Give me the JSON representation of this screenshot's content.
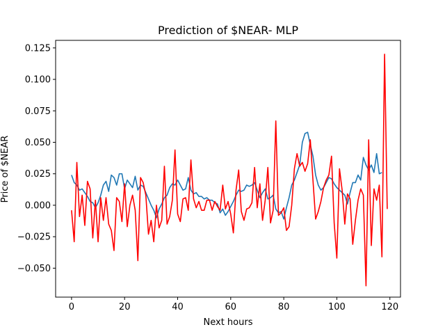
{
  "chart_data": {
    "type": "line",
    "title": "Prediction of $NEAR- MLP",
    "xlabel": "Next hours",
    "ylabel": "Price of $NEAR",
    "xlim": [
      -6,
      124
    ],
    "ylim": [
      -0.073,
      0.131
    ],
    "xticks": [
      0,
      20,
      40,
      60,
      80,
      100,
      120
    ],
    "xtick_labels": [
      "0",
      "20",
      "40",
      "60",
      "80",
      "100",
      "120"
    ],
    "yticks": [
      -0.05,
      -0.025,
      0.0,
      0.025,
      0.05,
      0.075,
      0.1,
      0.125
    ],
    "ytick_labels": [
      "−0.050",
      "−0.025",
      "0.000",
      "0.025",
      "0.050",
      "0.075",
      "0.100",
      "0.125"
    ],
    "grid": false,
    "legend": "none",
    "series": [
      {
        "color": "#1f77b4",
        "values": [
          0.024,
          0.018,
          0.016,
          0.012,
          0.013,
          0.01,
          0.007,
          0.003,
          0.002,
          -0.002,
          0.002,
          0.008,
          0.016,
          0.019,
          0.011,
          0.024,
          0.022,
          0.016,
          0.025,
          0.025,
          0.013,
          0.02,
          0.017,
          0.014,
          0.023,
          0.012,
          0.016,
          0.015,
          0.01,
          0.005,
          0.0,
          -0.004,
          -0.01,
          -0.003,
          0.001,
          0.006,
          0.008,
          0.014,
          0.017,
          0.016,
          0.02,
          0.016,
          0.012,
          0.013,
          0.022,
          0.012,
          0.009,
          0.01,
          0.007,
          0.007,
          0.005,
          0.006,
          0.004,
          0.004,
          0.002,
          0.001,
          -0.006,
          -0.003,
          -0.008,
          -0.005,
          -0.001,
          0.003,
          0.008,
          0.012,
          0.011,
          0.012,
          0.016,
          0.015,
          0.016,
          0.018,
          0.012,
          0.006,
          0.01,
          0.013,
          0.005,
          0.006,
          0.008,
          -0.003,
          -0.006,
          -0.005,
          -0.011,
          -0.002,
          0.006,
          0.016,
          0.02,
          0.026,
          0.032,
          0.05,
          0.057,
          0.058,
          0.048,
          0.039,
          0.024,
          0.016,
          0.012,
          0.014,
          0.018,
          0.022,
          0.021,
          0.017,
          0.014,
          0.012,
          0.01,
          0.008,
          0.001,
          0.01,
          0.018,
          0.018,
          0.024,
          0.02,
          0.038,
          0.032,
          0.028,
          0.032,
          0.026,
          0.041,
          0.025,
          0.026
        ]
      },
      {
        "color": "#ff0000",
        "values": [
          -0.004,
          -0.029,
          0.034,
          -0.009,
          0.008,
          -0.016,
          0.019,
          0.013,
          -0.026,
          0.004,
          -0.029,
          0.006,
          -0.012,
          0.006,
          -0.015,
          -0.02,
          -0.036,
          0.006,
          0.003,
          -0.013,
          0.017,
          -0.017,
          0.0,
          0.008,
          -0.004,
          -0.044,
          0.022,
          0.018,
          0.008,
          -0.023,
          -0.012,
          -0.029,
          0.0,
          -0.018,
          -0.012,
          0.031,
          -0.015,
          -0.009,
          0.004,
          0.044,
          -0.007,
          -0.013,
          0.005,
          0.006,
          -0.004,
          0.036,
          0.005,
          -0.002,
          0.003,
          -0.004,
          -0.004,
          0.004,
          0.004,
          -0.004,
          0.003,
          -0.001,
          -0.004,
          0.016,
          -0.003,
          0.003,
          -0.007,
          -0.022,
          0.012,
          0.028,
          -0.005,
          -0.012,
          -0.003,
          -0.002,
          0.002,
          0.03,
          -0.002,
          0.017,
          -0.012,
          0.004,
          0.03,
          -0.014,
          -0.004,
          0.067,
          -0.008,
          -0.006,
          -0.002,
          -0.02,
          -0.017,
          0.0,
          0.029,
          0.041,
          0.031,
          0.034,
          0.027,
          0.033,
          0.052,
          0.02,
          -0.011,
          -0.005,
          0.003,
          0.014,
          0.02,
          0.024,
          0.039,
          -0.014,
          -0.042,
          0.029,
          0.012,
          -0.015,
          0.009,
          0.005,
          -0.031,
          -0.012,
          0.004,
          0.013,
          0.008,
          -0.064,
          0.052,
          -0.032,
          0.013,
          0.004,
          0.016,
          -0.041,
          0.12,
          -0.003
        ]
      }
    ]
  }
}
